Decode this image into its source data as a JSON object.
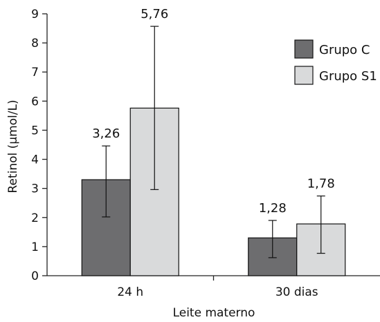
{
  "chart_data": {
    "type": "bar",
    "categories": [
      "24 h",
      "30 dias"
    ],
    "series": [
      {
        "name": "Grupo C",
        "values": [
          3.3,
          1.3
        ],
        "error_low": [
          2.02,
          0.62
        ],
        "error_high": [
          4.46,
          1.9
        ],
        "value_labels": [
          "3,26",
          "1,28"
        ],
        "color": "#6d6d6f"
      },
      {
        "name": "Grupo S1",
        "values": [
          5.76,
          1.78
        ],
        "error_low": [
          2.96,
          0.77
        ],
        "error_high": [
          8.57,
          2.74
        ],
        "value_labels": [
          "5,76",
          "1,78"
        ],
        "color": "#d9dadb"
      }
    ],
    "xlabel": "Leite materno",
    "ylabel": "Retinol (µmol/L)",
    "ylim": [
      0,
      9
    ],
    "yticks": [
      "0",
      "1",
      "2",
      "3",
      "4",
      "5",
      "6",
      "7",
      "8",
      "9"
    ],
    "grid": false,
    "legend_position": "top-right"
  }
}
